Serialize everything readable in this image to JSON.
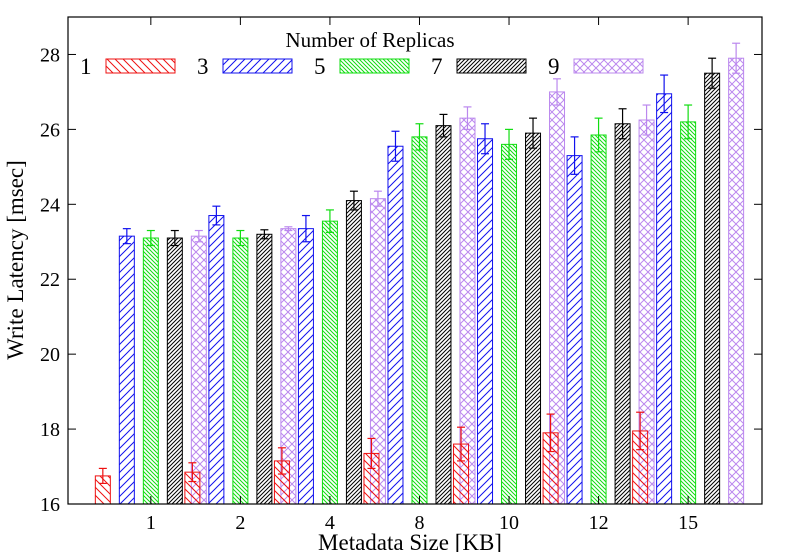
{
  "chart_data": {
    "type": "bar",
    "title": "",
    "xlabel": "Metadata Size [KB]",
    "ylabel": "Write Latency [msec]",
    "ylim": [
      16,
      29
    ],
    "yticks": [
      16,
      18,
      20,
      22,
      24,
      26,
      28
    ],
    "categories": [
      "1",
      "2",
      "4",
      "8",
      "10",
      "12",
      "15"
    ],
    "legend": {
      "title": "Number of Replicas",
      "placement": "top"
    },
    "grid": false,
    "error_bars": true,
    "series": [
      {
        "name": "1",
        "color": "#ee1111",
        "pattern": "hatch-down",
        "values": [
          16.75,
          16.85,
          17.15,
          17.35,
          17.6,
          17.9,
          17.95
        ],
        "errors": [
          0.2,
          0.25,
          0.35,
          0.4,
          0.45,
          0.5,
          0.5
        ]
      },
      {
        "name": "3",
        "color": "#1111ee",
        "pattern": "hatch-up",
        "values": [
          23.15,
          23.7,
          23.35,
          25.55,
          25.75,
          25.3,
          26.95
        ],
        "errors": [
          0.2,
          0.25,
          0.35,
          0.4,
          0.4,
          0.5,
          0.5
        ]
      },
      {
        "name": "5",
        "color": "#11dd11",
        "pattern": "hatch-down-dense",
        "values": [
          23.1,
          23.1,
          23.55,
          25.8,
          25.6,
          25.85,
          26.2
        ],
        "errors": [
          0.2,
          0.2,
          0.3,
          0.35,
          0.4,
          0.45,
          0.45
        ]
      },
      {
        "name": "7",
        "color": "#000000",
        "pattern": "hatch-up-dense",
        "values": [
          23.1,
          23.2,
          24.1,
          26.1,
          25.9,
          26.15,
          27.5
        ],
        "errors": [
          0.2,
          0.12,
          0.25,
          0.3,
          0.4,
          0.4,
          0.4
        ]
      },
      {
        "name": "9",
        "color": "#bb88ee",
        "pattern": "crosshatch",
        "values": [
          23.15,
          23.35,
          24.15,
          26.3,
          27.0,
          26.25,
          27.9
        ],
        "errors": [
          0.15,
          0.05,
          0.2,
          0.3,
          0.35,
          0.4,
          0.4
        ]
      }
    ]
  }
}
